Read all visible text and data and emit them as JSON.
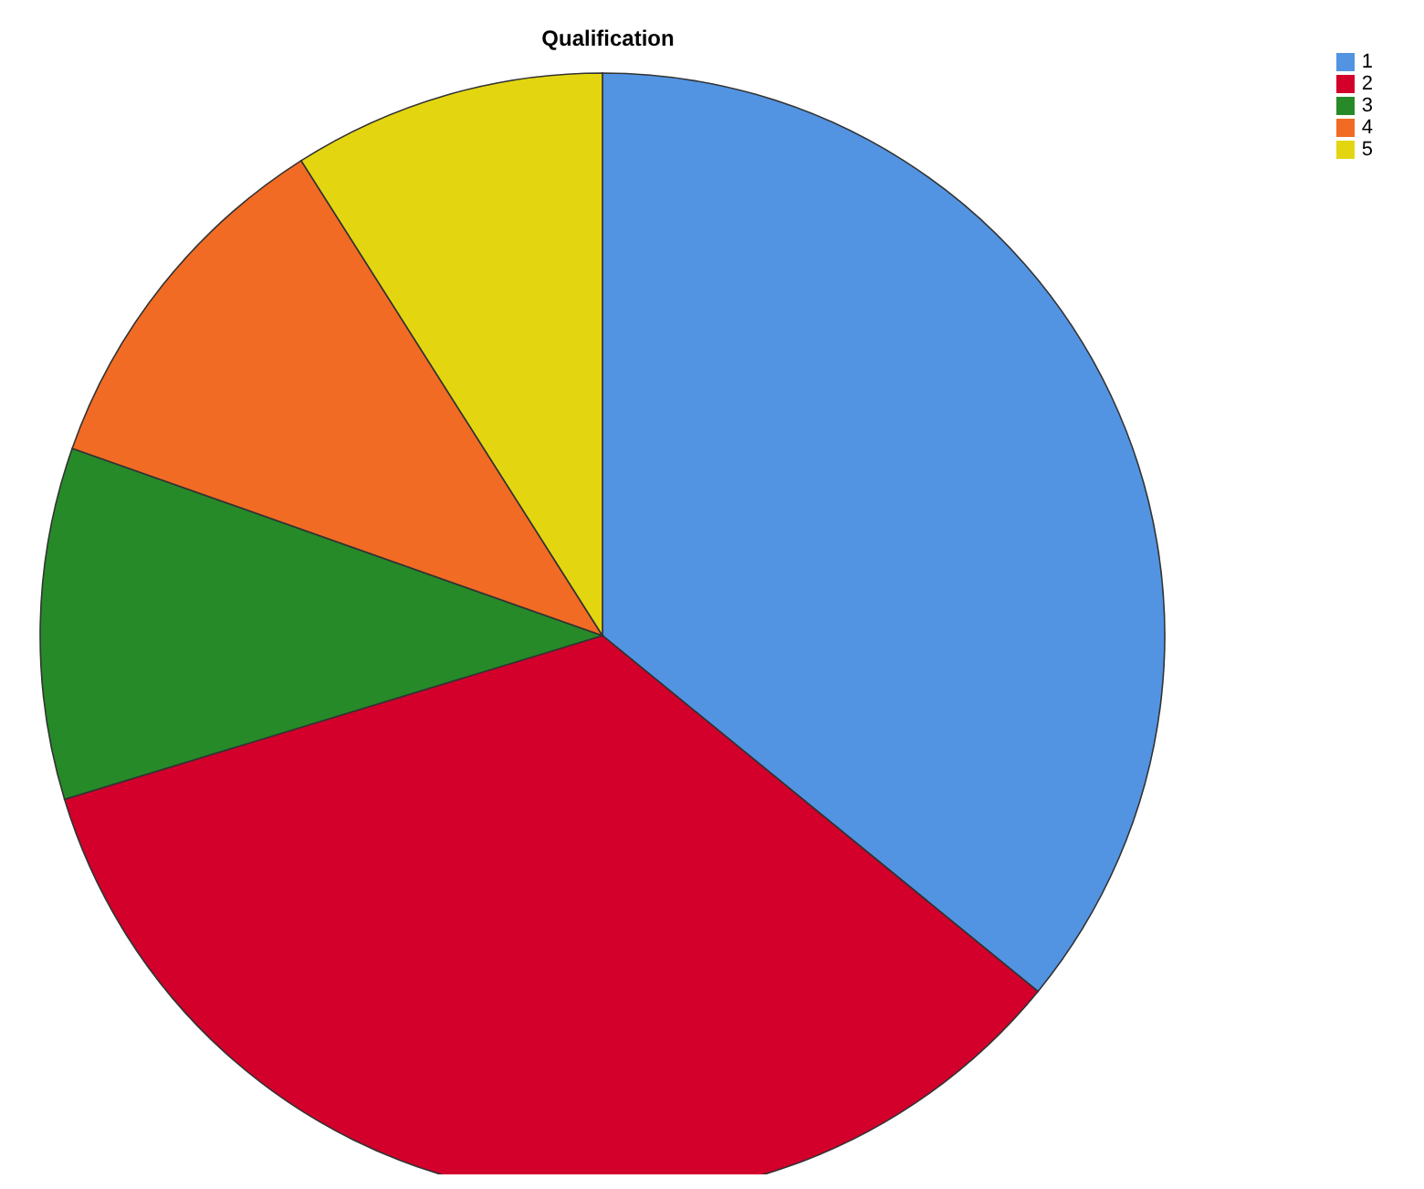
{
  "chart_data": {
    "type": "pie",
    "title": "Qualification",
    "categories": [
      "1",
      "2",
      "3",
      "4",
      "5"
    ],
    "values": [
      35.9,
      34.4,
      10.1,
      10.6,
      9.0
    ],
    "colors": [
      "#5294e2",
      "#d2002b",
      "#268a28",
      "#f26b24",
      "#e3d611"
    ],
    "legend": "top right"
  }
}
